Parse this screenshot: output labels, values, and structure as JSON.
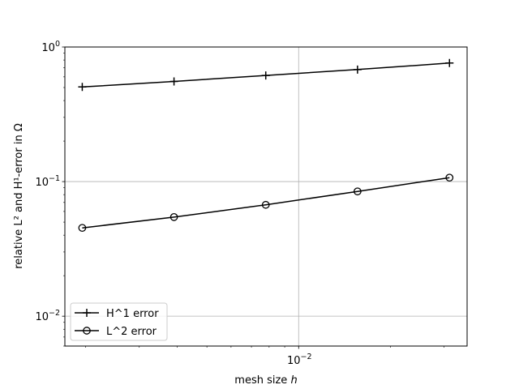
{
  "chart_data": {
    "type": "line",
    "title": "",
    "xlabel": {
      "prefix": "mesh size ",
      "var": "h"
    },
    "ylabel": "relative L² and H¹-error in Ω",
    "xscale": "log",
    "yscale": "log",
    "xlim": [
      0.00171,
      0.0357
    ],
    "ylim": [
      0.006,
      1.0
    ],
    "grid": true,
    "grid_lines": {
      "x": [
        0.01
      ],
      "y": [
        0.01,
        0.1,
        1.0
      ]
    },
    "x_major_ticks": [
      {
        "value": 0.01,
        "base": "10",
        "exp": "−2"
      }
    ],
    "y_major_ticks": [
      {
        "value": 0.01,
        "base": "10",
        "exp": "−2"
      },
      {
        "value": 0.1,
        "base": "10",
        "exp": "−1"
      },
      {
        "value": 1.0,
        "base": "10",
        "exp": "0"
      }
    ],
    "legend_position": "lower-left",
    "x": [
      0.00195,
      0.0039,
      0.0078,
      0.0156,
      0.03125
    ],
    "series": [
      {
        "name": "H^1 error",
        "marker": "plus",
        "color": "#000000",
        "values": [
          0.505,
          0.555,
          0.615,
          0.68,
          0.76
        ]
      },
      {
        "name": "L^2 error",
        "marker": "circle",
        "color": "#000000",
        "values": [
          0.0453,
          0.0545,
          0.0672,
          0.0845,
          0.107
        ]
      }
    ]
  }
}
